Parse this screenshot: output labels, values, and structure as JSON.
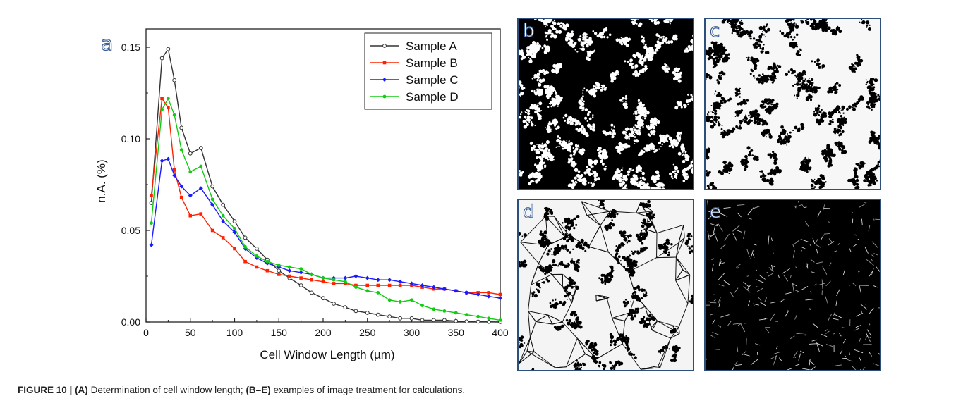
{
  "figure_label": "a",
  "caption": {
    "bold_figure": "FIGURE 10 |",
    "bold_a": "(A)",
    "text_a": " Determination of cell window length; ",
    "bold_b": "(B–E)",
    "text_b": " examples of image treatment for calculations."
  },
  "panels": [
    {
      "letter": "b",
      "style": "white-on-black"
    },
    {
      "letter": "c",
      "style": "black-on-white"
    },
    {
      "letter": "d",
      "style": "network"
    },
    {
      "letter": "e",
      "style": "skeleton"
    }
  ],
  "colors": {
    "Sample A": "#333333",
    "Sample B": "#ff2200",
    "Sample C": "#1a1aff",
    "Sample D": "#11cc11",
    "panel_border": "#2d4f7c"
  },
  "chart_data": {
    "type": "line",
    "title": "",
    "xlabel": "Cell Window Length (µm)",
    "ylabel": "n.A. (%)",
    "xlim": [
      0,
      400
    ],
    "ylim": [
      0,
      0.16
    ],
    "xticks": [
      0,
      50,
      100,
      150,
      200,
      250,
      300,
      350,
      400
    ],
    "yticks": [
      0.0,
      0.05,
      0.1,
      0.15
    ],
    "ytick_labels": [
      "0.00",
      "0.05",
      "0.10",
      "0.15"
    ],
    "grid": false,
    "legend_position": "top-right",
    "series": [
      {
        "name": "Sample A",
        "marker": "open-circle",
        "x": [
          6,
          18,
          25,
          32,
          40,
          50,
          62,
          75,
          87,
          100,
          112,
          125,
          137,
          150,
          162,
          175,
          187,
          200,
          212,
          225,
          237,
          250,
          262,
          275,
          287,
          300,
          312,
          325,
          337,
          350,
          362,
          375,
          387,
          400
        ],
        "y": [
          0.065,
          0.144,
          0.149,
          0.132,
          0.106,
          0.092,
          0.095,
          0.074,
          0.064,
          0.055,
          0.046,
          0.04,
          0.034,
          0.028,
          0.024,
          0.02,
          0.016,
          0.013,
          0.01,
          0.008,
          0.006,
          0.005,
          0.004,
          0.003,
          0.002,
          0.002,
          0.001,
          0.001,
          0.001,
          0.0005,
          0.0003,
          0.0002,
          0.0001,
          0.0
        ]
      },
      {
        "name": "Sample B",
        "marker": "filled-square",
        "x": [
          6,
          18,
          25,
          32,
          40,
          50,
          62,
          75,
          87,
          100,
          112,
          125,
          137,
          150,
          162,
          175,
          187,
          200,
          212,
          225,
          237,
          250,
          262,
          275,
          287,
          300,
          312,
          325,
          337,
          350,
          362,
          375,
          387,
          400
        ],
        "y": [
          0.069,
          0.122,
          0.117,
          0.083,
          0.068,
          0.058,
          0.059,
          0.05,
          0.046,
          0.04,
          0.033,
          0.03,
          0.028,
          0.026,
          0.025,
          0.024,
          0.023,
          0.022,
          0.021,
          0.021,
          0.02,
          0.02,
          0.02,
          0.02,
          0.02,
          0.02,
          0.019,
          0.018,
          0.018,
          0.017,
          0.016,
          0.016,
          0.016,
          0.015
        ]
      },
      {
        "name": "Sample C",
        "marker": "filled-diamond",
        "x": [
          6,
          18,
          25,
          32,
          40,
          50,
          62,
          75,
          87,
          100,
          112,
          125,
          137,
          150,
          162,
          175,
          187,
          200,
          212,
          225,
          237,
          250,
          262,
          275,
          287,
          300,
          312,
          325,
          337,
          350,
          362,
          375,
          387,
          400
        ],
        "y": [
          0.042,
          0.088,
          0.089,
          0.08,
          0.074,
          0.069,
          0.073,
          0.064,
          0.055,
          0.049,
          0.04,
          0.035,
          0.032,
          0.03,
          0.028,
          0.027,
          0.026,
          0.024,
          0.024,
          0.024,
          0.025,
          0.024,
          0.023,
          0.023,
          0.022,
          0.021,
          0.02,
          0.019,
          0.018,
          0.017,
          0.016,
          0.015,
          0.014,
          0.013
        ]
      },
      {
        "name": "Sample D",
        "marker": "filled-circle",
        "x": [
          6,
          18,
          25,
          32,
          40,
          50,
          62,
          75,
          87,
          100,
          112,
          125,
          137,
          150,
          162,
          175,
          187,
          200,
          212,
          225,
          237,
          250,
          262,
          275,
          287,
          300,
          312,
          325,
          337,
          350,
          362,
          375,
          387,
          400
        ],
        "y": [
          0.054,
          0.116,
          0.122,
          0.113,
          0.094,
          0.082,
          0.085,
          0.067,
          0.058,
          0.051,
          0.041,
          0.036,
          0.033,
          0.031,
          0.03,
          0.029,
          0.026,
          0.024,
          0.023,
          0.022,
          0.019,
          0.017,
          0.016,
          0.012,
          0.011,
          0.012,
          0.009,
          0.007,
          0.006,
          0.005,
          0.004,
          0.003,
          0.002,
          0.001
        ]
      }
    ]
  }
}
